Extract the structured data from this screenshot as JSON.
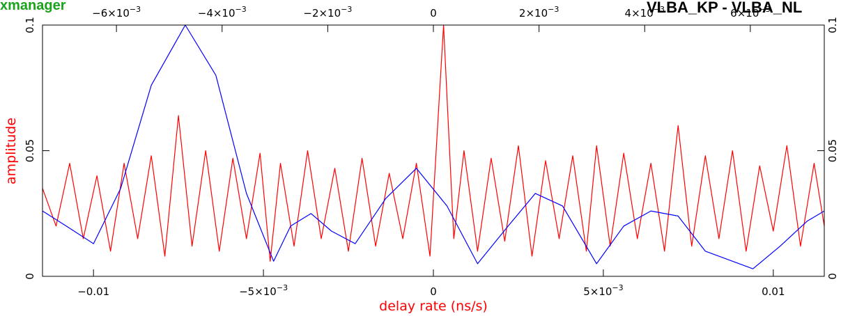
{
  "app": {
    "brand_text": "xmanager",
    "baseline_text": "VLBA_KP - VLBA_NL"
  },
  "colors": {
    "amplitude_series": "#ff0000",
    "model_series": "#0000ff",
    "axis_title": "#ff0000",
    "brand": "#1aa31a",
    "frame": "#000000"
  },
  "chart_data": {
    "type": "line",
    "xlabel": "delay rate (ns/s)",
    "ylabel": "amplitude",
    "xlim": [
      -0.0115,
      0.0115
    ],
    "ylim": [
      0,
      0.1
    ],
    "top_xlim": [
      -0.0074,
      0.0074
    ],
    "grid": false,
    "x_ticks": [
      {
        "value": -0.01,
        "label": "−0.01"
      },
      {
        "value": -0.005,
        "label": "−5×10",
        "exp": "−3"
      },
      {
        "value": 0,
        "label": "0"
      },
      {
        "value": 0.005,
        "label": "5×10",
        "exp": "−3"
      },
      {
        "value": 0.01,
        "label": "0.01"
      }
    ],
    "top_ticks": [
      {
        "value": -0.006,
        "label": "−6×10",
        "exp": "−3"
      },
      {
        "value": -0.004,
        "label": "−4×10",
        "exp": "−3"
      },
      {
        "value": -0.002,
        "label": "−2×10",
        "exp": "−3"
      },
      {
        "value": 0,
        "label": "0"
      },
      {
        "value": 0.002,
        "label": "2×10",
        "exp": "−3"
      },
      {
        "value": 0.004,
        "label": "4×10",
        "exp": "−3"
      },
      {
        "value": 0.006,
        "label": "6×10",
        "exp": "−3"
      }
    ],
    "y_ticks": [
      {
        "value": 0,
        "label": "0"
      },
      {
        "value": 0.05,
        "label": "0.05"
      },
      {
        "value": 0.1,
        "label": "0.1"
      }
    ],
    "right_y_ticks": [
      {
        "value": 0,
        "label": "0"
      },
      {
        "value": 0.05,
        "label": "0.05"
      },
      {
        "value": 0.1,
        "label": "0.1"
      }
    ],
    "series": [
      {
        "color": "#0000ff",
        "x": [
          -0.0115,
          -0.0108,
          -0.01,
          -0.0092,
          -0.0083,
          -0.0073,
          -0.0064,
          -0.0055,
          -0.0047,
          -0.0042,
          -0.0036,
          -0.003,
          -0.0023,
          -0.0014,
          -0.0005,
          0.0004,
          0.0013,
          0.0022,
          0.003,
          0.0038,
          0.0048,
          0.0056,
          0.0064,
          0.0072,
          0.008,
          0.0088,
          0.0094,
          0.0102,
          0.011,
          0.0115
        ],
        "y": [
          0.026,
          0.02,
          0.013,
          0.035,
          0.076,
          0.1,
          0.08,
          0.033,
          0.006,
          0.02,
          0.025,
          0.018,
          0.013,
          0.031,
          0.043,
          0.028,
          0.005,
          0.02,
          0.033,
          0.028,
          0.005,
          0.02,
          0.026,
          0.024,
          0.01,
          0.006,
          0.003,
          0.012,
          0.022,
          0.026
        ]
      },
      {
        "color": "#ff0000",
        "x": [
          -0.0115,
          -0.0111,
          -0.0107,
          -0.0103,
          -0.0099,
          -0.0095,
          -0.0091,
          -0.0087,
          -0.0083,
          -0.0079,
          -0.0075,
          -0.0071,
          -0.0067,
          -0.0063,
          -0.0059,
          -0.0055,
          -0.0051,
          -0.0048,
          -0.0045,
          -0.0041,
          -0.0037,
          -0.0033,
          -0.0029,
          -0.0025,
          -0.0021,
          -0.0017,
          -0.0013,
          -0.0009,
          -0.0005,
          -0.0001,
          0.0003,
          0.0006,
          0.0009,
          0.0013,
          0.0017,
          0.0021,
          0.0025,
          0.0029,
          0.0033,
          0.0037,
          0.0041,
          0.0045,
          0.0048,
          0.0052,
          0.0056,
          0.006,
          0.0064,
          0.0068,
          0.0072,
          0.0076,
          0.008,
          0.0084,
          0.0088,
          0.0092,
          0.0096,
          0.01,
          0.0104,
          0.0108,
          0.0112,
          0.0115
        ],
        "y": [
          0.035,
          0.02,
          0.045,
          0.015,
          0.04,
          0.01,
          0.045,
          0.015,
          0.048,
          0.008,
          0.064,
          0.012,
          0.05,
          0.01,
          0.047,
          0.015,
          0.049,
          0.006,
          0.045,
          0.012,
          0.05,
          0.015,
          0.043,
          0.01,
          0.047,
          0.012,
          0.041,
          0.015,
          0.045,
          0.008,
          0.1,
          0.015,
          0.05,
          0.01,
          0.047,
          0.014,
          0.052,
          0.008,
          0.046,
          0.015,
          0.048,
          0.01,
          0.052,
          0.012,
          0.049,
          0.015,
          0.045,
          0.01,
          0.06,
          0.012,
          0.048,
          0.015,
          0.05,
          0.01,
          0.044,
          0.018,
          0.052,
          0.012,
          0.045,
          0.02
        ]
      }
    ]
  }
}
